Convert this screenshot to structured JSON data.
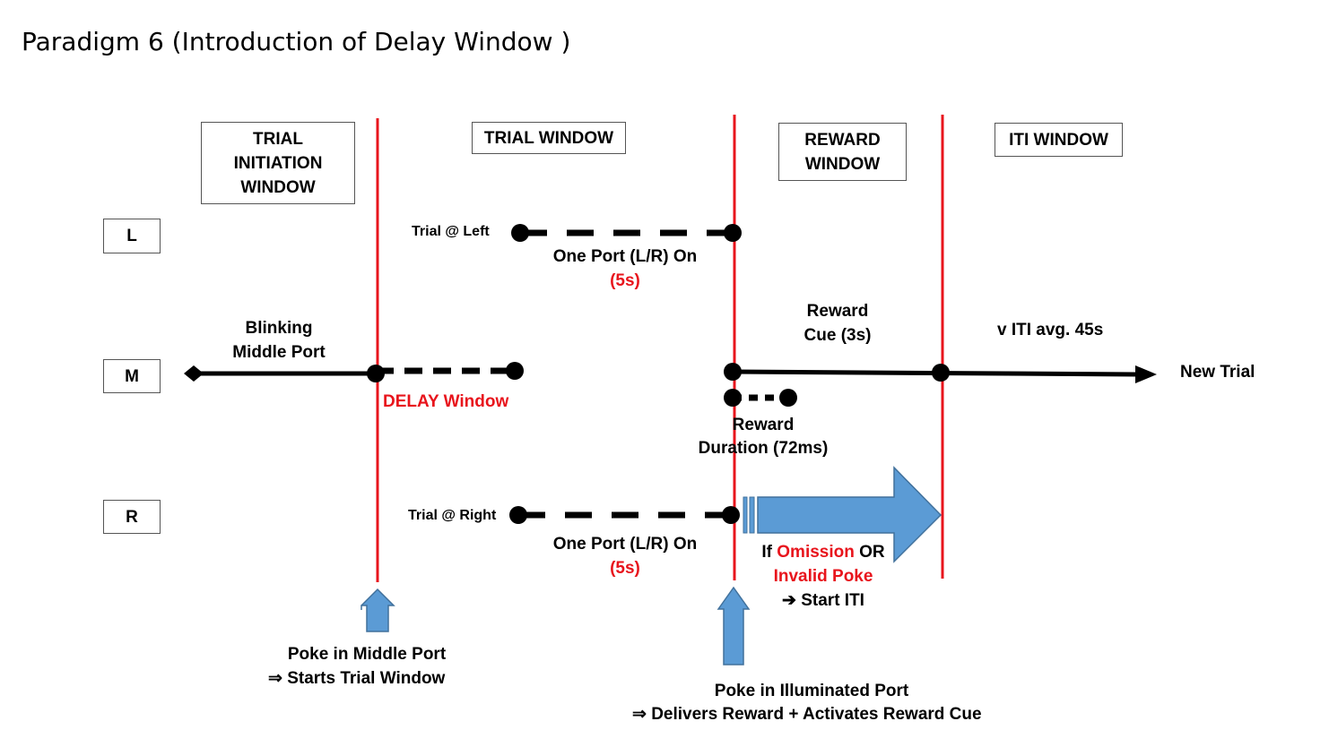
{
  "title": "Paradigm 6 (Introduction of Delay Window )",
  "windows": {
    "trial_initiation": "TRIAL INITIATION WINDOW",
    "trial": "TRIAL WINDOW",
    "reward": "REWARD WINDOW",
    "iti": "ITI WINDOW"
  },
  "ports": {
    "left": "L",
    "middle": "M",
    "right": "R"
  },
  "labels": {
    "trial_left": "Trial @ Left",
    "trial_right": "Trial @ Right",
    "one_port_top": "One Port (L/R) On",
    "five_s_top": "(5s)",
    "one_port_bottom": "One Port (L/R) On",
    "five_s_bottom": "(5s)",
    "blinking_line1": "Blinking",
    "blinking_line2": "Middle Port",
    "delay_window": "DELAY Window",
    "reward_cue_line1": "Reward",
    "reward_cue_line2": "Cue (3s)",
    "iti_avg": "v ITI avg. 45s",
    "new_trial": "New Trial",
    "reward_duration_line1": "Reward",
    "reward_duration_line2": "Duration (72ms)",
    "if_prefix": "If ",
    "omission": "Omission",
    "or_suffix": " OR",
    "invalid_poke": "Invalid Poke",
    "start_iti": "➔ Start ITI",
    "poke_middle_line1": "Poke in Middle Port",
    "poke_middle_line2": "⇒  Starts Trial Window",
    "poke_illuminated_line1": "Poke in Illuminated Port",
    "poke_illuminated_line2": "⇒  Delivers Reward + Activates Reward Cue"
  },
  "colors": {
    "boundary": "#e8141c",
    "arrow_fill": "#5b9bd5",
    "arrow_stroke": "#41719c",
    "line": "#000000"
  }
}
